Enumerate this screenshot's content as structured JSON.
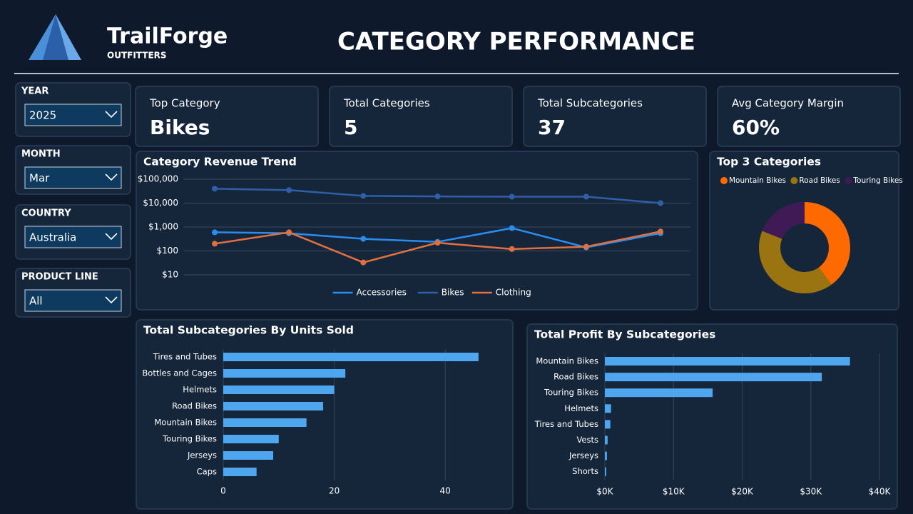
{
  "header": {
    "brand": "TrailForge",
    "tagline": "OUTFITTERS",
    "title": "CATEGORY PERFORMANCE"
  },
  "filters": [
    {
      "label": "YEAR",
      "value": "2025"
    },
    {
      "label": "MONTH",
      "value": "Mar"
    },
    {
      "label": "COUNTRY",
      "value": "Australia"
    },
    {
      "label": "PRODUCT LINE",
      "value": "All"
    }
  ],
  "kpis": [
    {
      "label": "Top Category",
      "value": "Bikes"
    },
    {
      "label": "Total Categories",
      "value": 5
    },
    {
      "label": "Total Subcategories",
      "value": 37
    },
    {
      "label": "Avg Category Margin",
      "value": 60,
      "value_label": "60%"
    }
  ],
  "chart_data": [
    {
      "type": "line",
      "title": "Category Revenue Trend",
      "log_scale": true,
      "grid": true,
      "legend": "bottom",
      "categories": [
        null,
        null,
        null,
        null,
        null,
        null,
        null
      ],
      "ylim": [
        10,
        100000
      ],
      "yticks": [
        {
          "value": 10,
          "label": "$10"
        },
        {
          "value": 100,
          "label": "$100"
        },
        {
          "value": 1000,
          "label": "$1,000"
        },
        {
          "value": 10000,
          "label": "$10,000"
        },
        {
          "value": 100000,
          "label": "$100,000"
        }
      ],
      "series": [
        {
          "name": "Accessories",
          "color": "#2b8cf0",
          "values": [
            600,
            550,
            320,
            240,
            900,
            140,
            550
          ]
        },
        {
          "name": "Bikes",
          "color": "#2e5fa8",
          "values": [
            40000,
            35000,
            20000,
            19000,
            18500,
            18500,
            10000
          ]
        },
        {
          "name": "Clothing",
          "color": "#e07040",
          "values": [
            200,
            600,
            33,
            220,
            120,
            150,
            650
          ]
        }
      ]
    },
    {
      "type": "pie",
      "title": "Top 3 Categories",
      "legend": "top",
      "categories": [
        "Mountain Bikes",
        "Road Bikes",
        "Touring Bikes"
      ],
      "values": [
        40,
        41,
        19
      ],
      "colors": [
        "#ff6a00",
        "#9a7410",
        "#3f1a55"
      ]
    },
    {
      "type": "bar",
      "title": "Total Subcategories By Units Sold",
      "orientation": "horizontal",
      "grid": true,
      "color": "#4da6ee",
      "categories": [
        "Tires and Tubes",
        "Bottles and Cages",
        "Helmets",
        "Road Bikes",
        "Mountain Bikes",
        "Touring Bikes",
        "Jerseys",
        "Caps"
      ],
      "values": [
        46,
        22,
        20,
        18,
        15,
        10,
        9,
        6
      ],
      "xlim": [
        0,
        50
      ],
      "xticks": [
        0,
        20,
        40
      ]
    },
    {
      "type": "bar",
      "title": "Total Profit By Subcategories",
      "orientation": "horizontal",
      "grid": true,
      "color": "#4da6ee",
      "categories": [
        "Mountain Bikes",
        "Road Bikes",
        "Touring Bikes",
        "Helmets",
        "Tires and Tubes",
        "Vests",
        "Jerseys",
        "Shorts"
      ],
      "values": [
        35700,
        31600,
        15700,
        900,
        800,
        400,
        300,
        200
      ],
      "xlim": [
        0,
        40000
      ],
      "xticks": [
        {
          "value": 0,
          "label": "$0K"
        },
        {
          "value": 10000,
          "label": "$10K"
        },
        {
          "value": 20000,
          "label": "$20K"
        },
        {
          "value": 30000,
          "label": "$30K"
        },
        {
          "value": 40000,
          "label": "$40K"
        }
      ]
    }
  ]
}
